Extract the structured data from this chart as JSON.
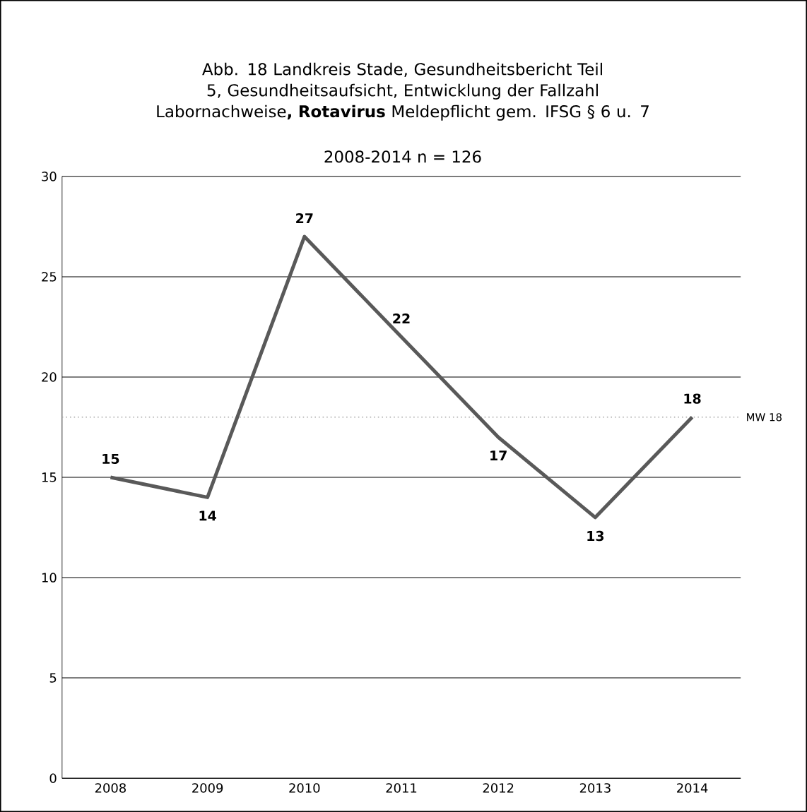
{
  "chart_data": {
    "type": "line",
    "title": "Abb. 18 Landkreis Stade, Gesundheitsbericht Teil 5, Gesundheitsaufsicht, Entwicklung der Fallzahl Labornachweise**, Rotavirus** Meldepflicht gem. IFSG § 6 u. 7",
    "subtitle": "2008-2014  n = 126",
    "categories": [
      "2008",
      "2009",
      "2010",
      "2011",
      "2012",
      "2013",
      "2014"
    ],
    "series": [
      {
        "color": "#595959",
        "values": [
          15,
          14,
          27,
          22,
          17,
          13,
          18
        ]
      }
    ],
    "ylim": [
      0,
      30
    ],
    "yticks": [
      0,
      5,
      10,
      15,
      20,
      25,
      30
    ],
    "grid": "y",
    "data_labels": true,
    "marker": "none",
    "line_style": "solid",
    "ref_lines": [
      {
        "axis": "y",
        "value": 18,
        "label": "MW 18",
        "color": "#a6a6a6",
        "line_style": "dotted"
      }
    ]
  }
}
